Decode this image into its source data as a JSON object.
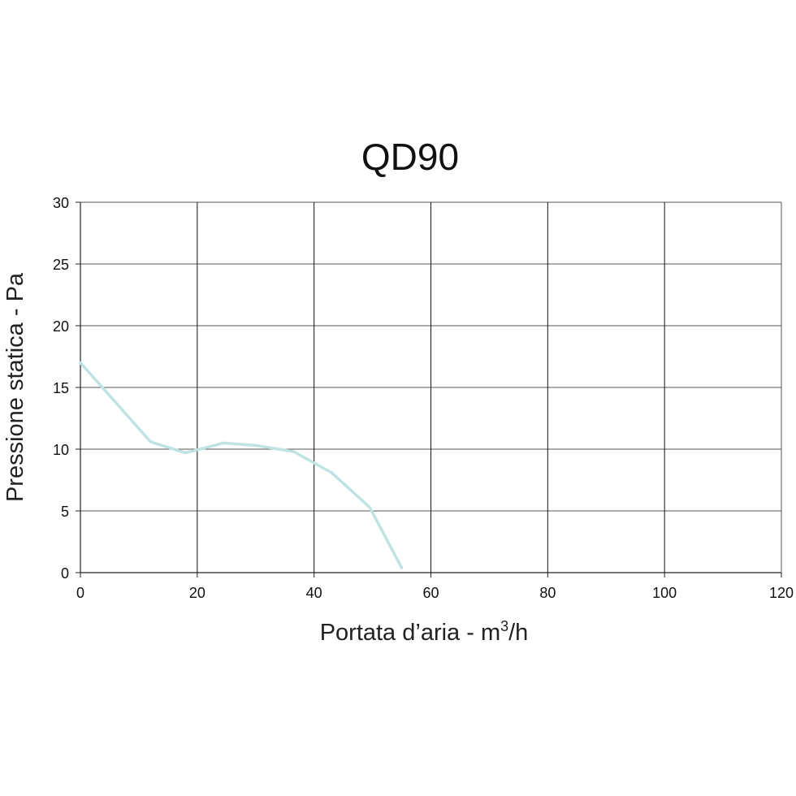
{
  "chart_data": {
    "type": "line",
    "title": "QD90",
    "xlabel_prefix": "Portata d’aria - m",
    "xlabel_sup": "3",
    "xlabel_suffix": "/h",
    "ylabel": "Pressione statica - Pa",
    "xlim": [
      0,
      120
    ],
    "ylim": [
      0,
      30
    ],
    "x_ticks": [
      0,
      20,
      40,
      60,
      80,
      100,
      120
    ],
    "y_ticks": [
      0,
      5,
      10,
      15,
      20,
      25,
      30
    ],
    "grid": true,
    "colors": {
      "line": "#bfe3e3",
      "grid_v": "#111111",
      "grid_h": "#555555",
      "axis": "#222222"
    },
    "series": [
      {
        "x": [
          0,
          6,
          12,
          18,
          24.5,
          30,
          36.5,
          43,
          49.5,
          55
        ],
        "y": [
          17.0,
          13.8,
          10.6,
          9.7,
          10.5,
          10.3,
          9.8,
          8.1,
          5.3,
          0.4
        ]
      }
    ]
  }
}
